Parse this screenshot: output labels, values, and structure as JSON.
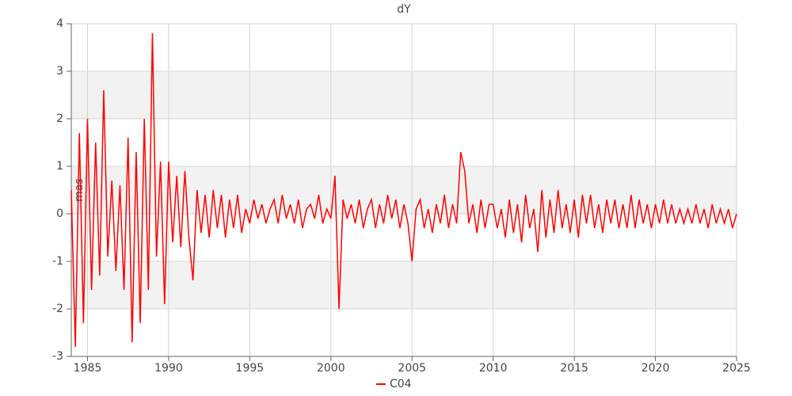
{
  "chart_data": {
    "type": "line",
    "title": "dY",
    "y_label": "mas",
    "x": [
      1984,
      1984.25,
      1984.5,
      1984.75,
      1985,
      1985.25,
      1985.5,
      1985.75,
      1986,
      1986.25,
      1986.5,
      1986.75,
      1987,
      1987.25,
      1987.5,
      1987.75,
      1988,
      1988.25,
      1988.5,
      1988.75,
      1989,
      1989.25,
      1989.5,
      1989.75,
      1990,
      1990.25,
      1990.5,
      1990.75,
      1991,
      1991.25,
      1991.5,
      1991.75,
      1992,
      1992.25,
      1992.5,
      1992.75,
      1993,
      1993.25,
      1993.5,
      1993.75,
      1994,
      1994.25,
      1994.5,
      1994.75,
      1995,
      1995.25,
      1995.5,
      1995.75,
      1996,
      1996.25,
      1996.5,
      1996.75,
      1997,
      1997.25,
      1997.5,
      1997.75,
      1998,
      1998.25,
      1998.5,
      1998.75,
      1999,
      1999.25,
      1999.5,
      1999.75,
      2000,
      2000.25,
      2000.5,
      2000.75,
      2001,
      2001.25,
      2001.5,
      2001.75,
      2002,
      2002.25,
      2002.5,
      2002.75,
      2003,
      2003.25,
      2003.5,
      2003.75,
      2004,
      2004.25,
      2004.5,
      2004.75,
      2005,
      2005.25,
      2005.5,
      2005.75,
      2006,
      2006.25,
      2006.5,
      2006.75,
      2007,
      2007.25,
      2007.5,
      2007.75,
      2008,
      2008.25,
      2008.5,
      2008.75,
      2009,
      2009.25,
      2009.5,
      2009.75,
      2010,
      2010.25,
      2010.5,
      2010.75,
      2011,
      2011.25,
      2011.5,
      2011.75,
      2012,
      2012.25,
      2012.5,
      2012.75,
      2013,
      2013.25,
      2013.5,
      2013.75,
      2014,
      2014.25,
      2014.5,
      2014.75,
      2015,
      2015.25,
      2015.5,
      2015.75,
      2016,
      2016.25,
      2016.5,
      2016.75,
      2017,
      2017.25,
      2017.5,
      2017.75,
      2018,
      2018.25,
      2018.5,
      2018.75,
      2019,
      2019.25,
      2019.5,
      2019.75,
      2020,
      2020.25,
      2020.5,
      2020.75,
      2021,
      2021.25,
      2021.5,
      2021.75,
      2022,
      2022.25,
      2022.5,
      2022.75,
      2023,
      2023.25,
      2023.5,
      2023.75,
      2024,
      2024.25,
      2024.5,
      2024.75,
      2025
    ],
    "series": [
      {
        "name": "C04",
        "color": "#ff0000",
        "values": [
          0.5,
          -2.8,
          1.7,
          -2.3,
          2.0,
          -1.6,
          1.5,
          -1.3,
          2.6,
          -0.9,
          0.7,
          -1.2,
          0.6,
          -1.6,
          1.6,
          -2.7,
          1.3,
          -2.3,
          2.0,
          -1.6,
          3.8,
          -0.9,
          1.1,
          -1.9,
          1.1,
          -0.6,
          0.8,
          -0.7,
          0.9,
          -0.5,
          -1.4,
          0.5,
          -0.4,
          0.4,
          -0.5,
          0.5,
          -0.3,
          0.4,
          -0.5,
          0.3,
          -0.3,
          0.4,
          -0.4,
          0.1,
          -0.2,
          0.3,
          -0.1,
          0.2,
          -0.2,
          0.1,
          0.3,
          -0.2,
          0.4,
          -0.1,
          0.2,
          -0.2,
          0.3,
          -0.3,
          0.1,
          0.2,
          -0.1,
          0.4,
          -0.2,
          0.1,
          -0.1,
          0.8,
          -2.0,
          0.3,
          -0.1,
          0.2,
          -0.2,
          0.3,
          -0.3,
          0.1,
          0.3,
          -0.3,
          0.2,
          -0.2,
          0.4,
          -0.1,
          0.3,
          -0.3,
          0.2,
          -0.2,
          -1.0,
          0.1,
          0.3,
          -0.3,
          0.1,
          -0.4,
          0.2,
          -0.2,
          0.4,
          -0.3,
          0.2,
          -0.2,
          1.3,
          0.9,
          -0.2,
          0.2,
          -0.4,
          0.3,
          -0.3,
          0.2,
          0.2,
          -0.3,
          0.1,
          -0.5,
          0.3,
          -0.4,
          0.2,
          -0.6,
          0.4,
          -0.3,
          0.1,
          -0.8,
          0.5,
          -0.5,
          0.3,
          -0.4,
          0.5,
          -0.3,
          0.2,
          -0.4,
          0.3,
          -0.5,
          0.4,
          -0.2,
          0.4,
          -0.3,
          0.2,
          -0.4,
          0.3,
          -0.2,
          0.3,
          -0.3,
          0.2,
          -0.3,
          0.4,
          -0.3,
          0.3,
          -0.2,
          0.2,
          -0.3,
          0.2,
          -0.2,
          0.3,
          -0.2,
          0.2,
          -0.2,
          0.1,
          -0.2,
          0.1,
          -0.2,
          0.2,
          -0.2,
          0.1,
          -0.3,
          0.2,
          -0.2,
          0.1,
          -0.2,
          0.1,
          -0.3,
          0.0
        ]
      }
    ],
    "xlim": [
      1984,
      2025
    ],
    "xticks": [
      1985,
      1990,
      1995,
      2000,
      2005,
      2010,
      2015,
      2020,
      2025
    ],
    "ylim": [
      -3,
      4
    ],
    "yticks": [
      -3,
      -2,
      -1,
      0,
      1,
      2,
      3,
      4
    ],
    "grid": true
  }
}
